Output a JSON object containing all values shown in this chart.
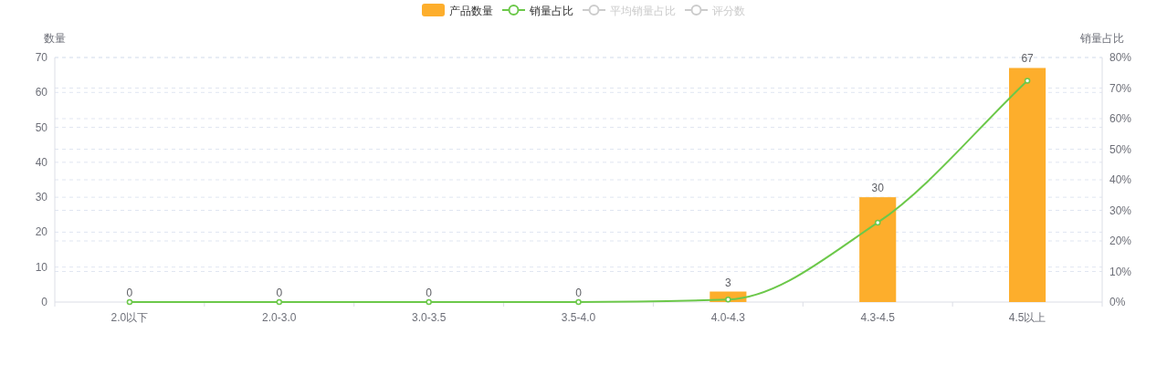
{
  "chart_data": {
    "type": "bar",
    "categories": [
      "2.0以下",
      "2.0-3.0",
      "3.0-3.5",
      "3.5-4.0",
      "4.0-4.3",
      "4.3-4.5",
      "4.5以上"
    ],
    "series": [
      {
        "name": "产品数量",
        "color": "#fdae2c",
        "values": [
          0,
          0,
          0,
          0,
          3,
          30,
          67
        ],
        "value_labels": [
          "0",
          "0",
          "0",
          "0",
          "3",
          "30",
          "67"
        ]
      },
      {
        "name": "销量占比",
        "type": "line",
        "axis": "y2",
        "color": "#6cc84a",
        "values": [
          0,
          0,
          0,
          0,
          0.8,
          26,
          72.4
        ]
      },
      {
        "name": "平均销量占比",
        "type": "line",
        "color": "#cccccc",
        "values": [
          null,
          null,
          null,
          null,
          null,
          null,
          null
        ]
      },
      {
        "name": "评分数",
        "type": "line",
        "color": "#cccccc",
        "values": [
          null,
          null,
          null,
          null,
          null,
          null,
          null
        ]
      }
    ],
    "ylabel": "数量",
    "y2label": "销量占比",
    "ylim": [
      0,
      70
    ],
    "yticks": [
      0,
      10,
      20,
      30,
      40,
      50,
      60,
      70
    ],
    "y2lim": [
      0,
      80
    ],
    "y2ticks": [
      {
        "value": 0,
        "label": "0%"
      },
      {
        "value": 10,
        "label": "10%"
      },
      {
        "value": 20,
        "label": "20%"
      },
      {
        "value": 30,
        "label": "30%"
      },
      {
        "value": 40,
        "label": "40%"
      },
      {
        "value": 50,
        "label": "50%"
      },
      {
        "value": 60,
        "label": "60%"
      },
      {
        "value": 70,
        "label": "70%"
      },
      {
        "value": 80,
        "label": "80%"
      }
    ],
    "grid": "y",
    "legend": "top",
    "marker": "circle"
  }
}
